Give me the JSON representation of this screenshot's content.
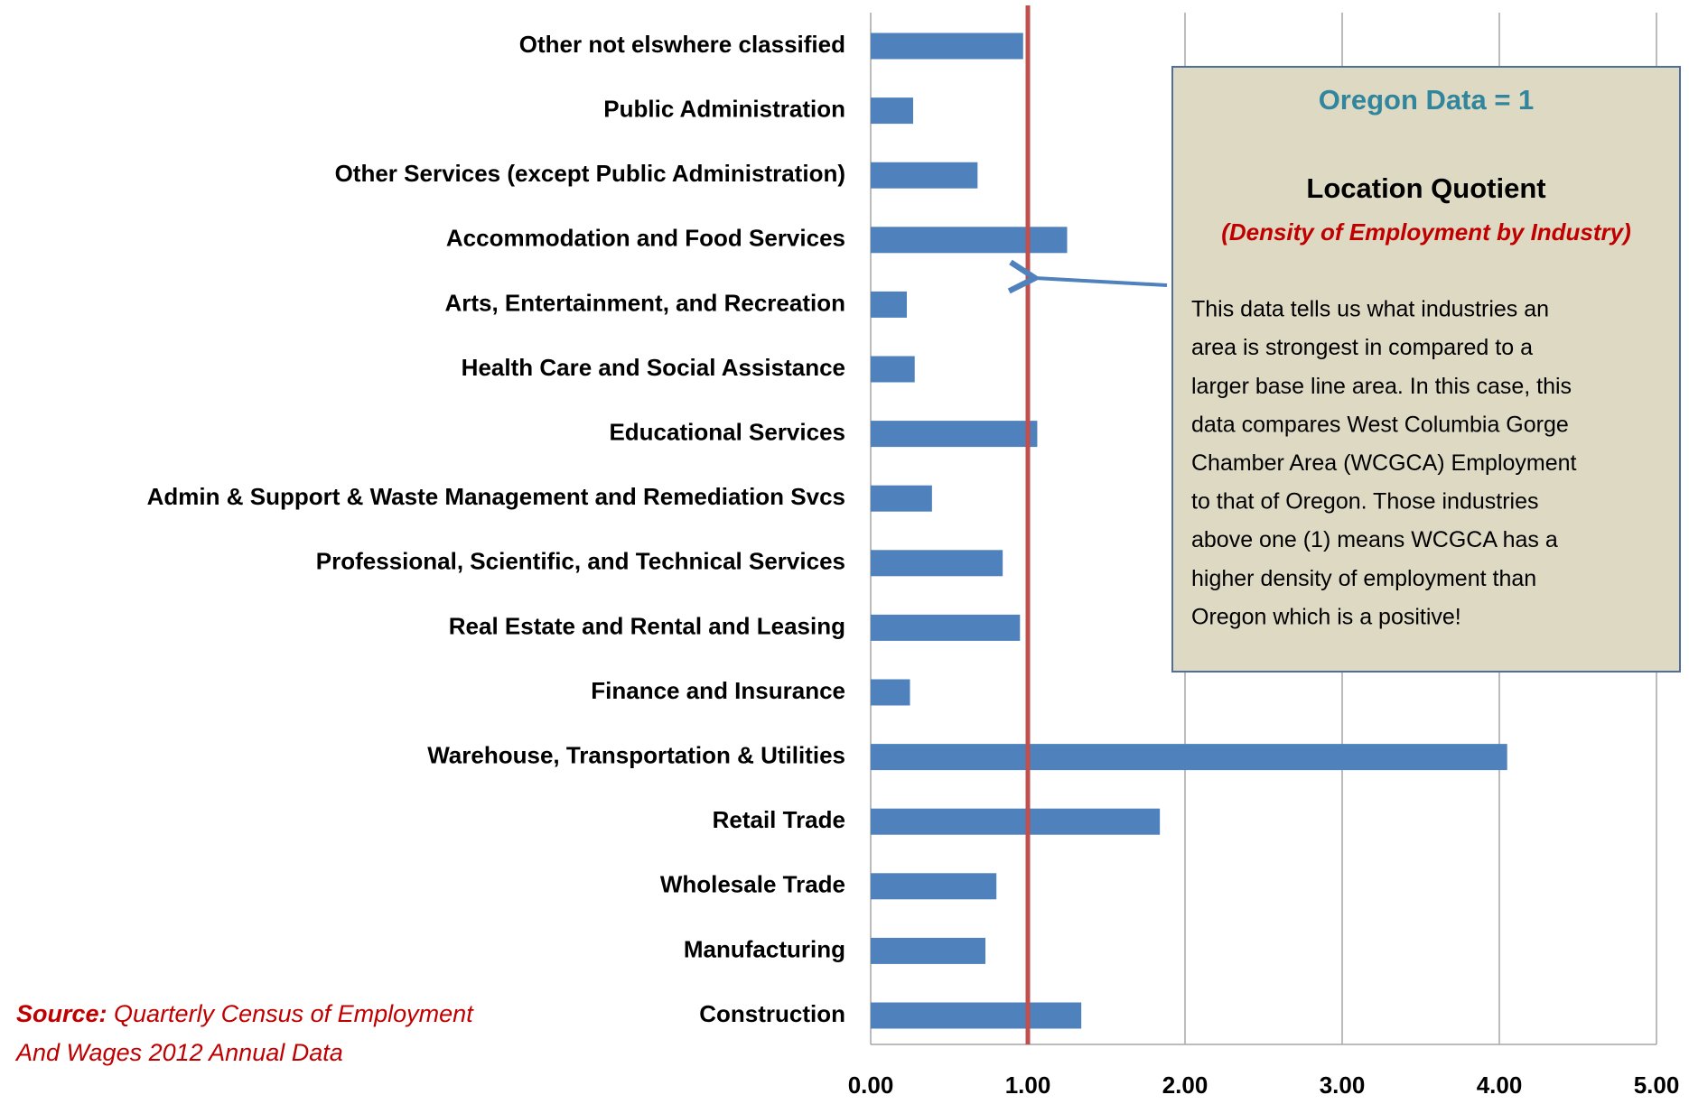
{
  "chart_data": {
    "type": "bar",
    "orientation": "horizontal",
    "categories": [
      "Other not elswhere classified",
      "Public Administration",
      "Other Services (except Public Administration)",
      "Accommodation and Food Services",
      "Arts, Entertainment, and Recreation",
      "Health Care and Social Assistance",
      "Educational Services",
      "Admin & Support & Waste Management and Remediation Svcs",
      "Professional, Scientific, and Technical Services",
      "Real Estate and Rental and Leasing",
      "Finance and Insurance",
      "Warehouse, Transportation & Utilities",
      "Retail Trade",
      "Wholesale Trade",
      "Manufacturing",
      "Construction"
    ],
    "values": [
      0.97,
      0.27,
      0.68,
      1.25,
      0.23,
      0.28,
      1.06,
      0.39,
      0.84,
      0.95,
      0.25,
      4.05,
      1.84,
      0.8,
      0.73,
      1.34
    ],
    "color": "#4f81bd",
    "xlim": [
      0,
      5
    ],
    "xticks": [
      {
        "value": 0,
        "label": "0.00"
      },
      {
        "value": 1,
        "label": "1.00"
      },
      {
        "value": 2,
        "label": "2.00"
      },
      {
        "value": 3,
        "label": "3.00"
      },
      {
        "value": 4,
        "label": "4.00"
      },
      {
        "value": 5,
        "label": "5.00"
      }
    ],
    "grid": true,
    "reference_line": {
      "value": 1,
      "color": "#c0504d"
    },
    "annotation": {
      "heading": "Oregon Data = 1",
      "title": "Location Quotient",
      "subtitle": "(Density of Employment by Industry)",
      "body": [
        "This data tells us what industries an",
        "area is strongest in compared to a",
        "larger base line area.  In this case, this",
        "data compares West Columbia Gorge",
        "Chamber Area (WCGCA) Employment",
        "to that of Oregon. Those industries",
        "above one (1) means WCGCA has a",
        "higher density of employment  than",
        "Oregon which is a positive!"
      ]
    },
    "source": {
      "label": "Source:",
      "lines": [
        "Quarterly Census of Employment",
        "And Wages 2012 Annual Data"
      ]
    }
  }
}
